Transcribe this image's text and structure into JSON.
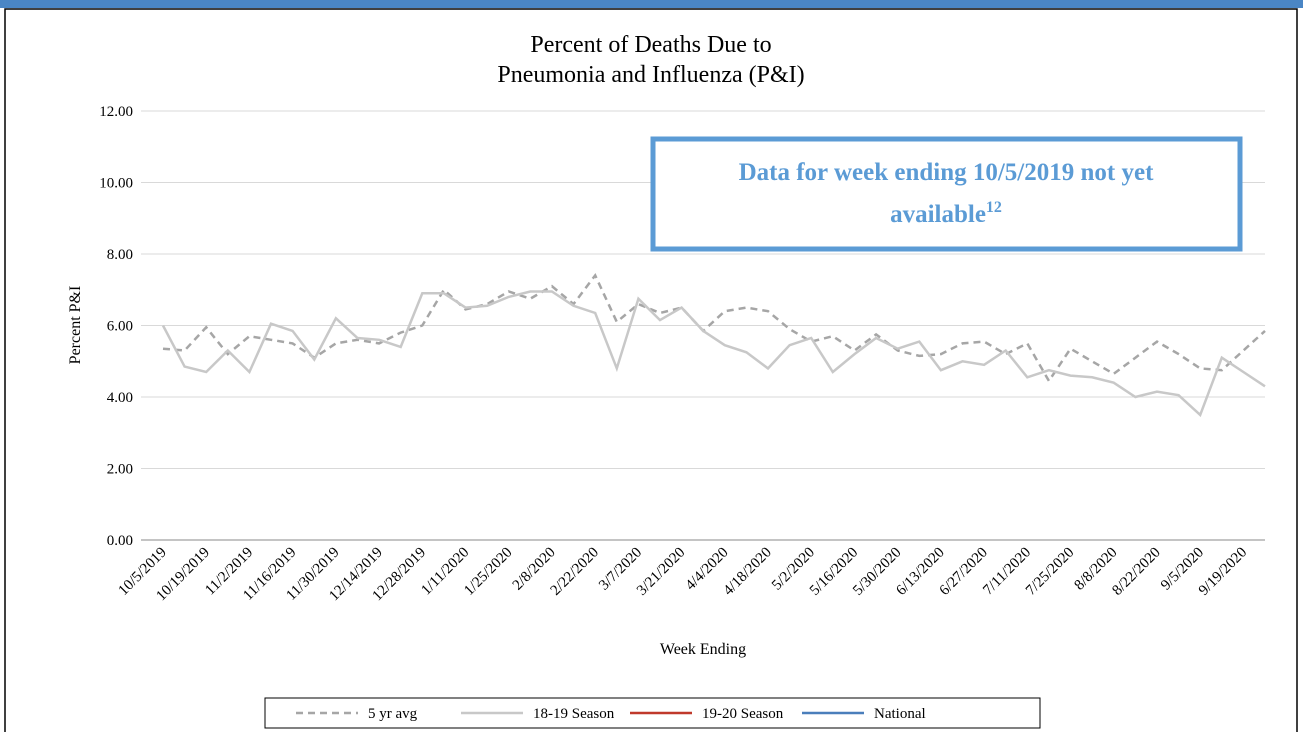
{
  "chart_data": {
    "type": "line",
    "title": [
      "Percent of Deaths Due to",
      "Pneumonia and Influenza (P&I)"
    ],
    "y_label": "Percent P&I",
    "x_label": "Week Ending",
    "annotation": {
      "text": [
        "Data for week ending 10/5/2019 not yet",
        "available"
      ],
      "superscript": "12"
    },
    "categories": [
      "10/5/2019",
      null,
      "10/19/2019",
      null,
      "11/2/2019",
      null,
      "11/16/2019",
      null,
      "11/30/2019",
      null,
      "12/14/2019",
      null,
      "12/28/2019",
      null,
      "1/11/2020",
      null,
      "1/25/2020",
      null,
      "2/8/2020",
      null,
      "2/22/2020",
      null,
      "3/7/2020",
      null,
      "3/21/2020",
      null,
      "4/4/2020",
      null,
      "4/18/2020",
      null,
      "5/2/2020",
      null,
      "5/16/2020",
      null,
      "5/30/2020",
      null,
      "6/13/2020",
      null,
      "6/27/2020",
      null,
      "7/11/2020",
      null,
      "7/25/2020",
      null,
      "8/8/2020",
      null,
      "8/22/2020",
      null,
      "9/5/2020",
      null,
      "9/19/2020",
      null
    ],
    "series": [
      {
        "name": "5 yr avg",
        "color": "#a6a6a6",
        "dash": true,
        "values": [
          5.35,
          5.3,
          5.95,
          5.2,
          5.7,
          5.6,
          5.5,
          5.1,
          5.5,
          5.6,
          5.5,
          5.8,
          6.0,
          7.0,
          6.45,
          6.6,
          6.95,
          6.75,
          7.1,
          6.6,
          7.4,
          6.1,
          6.6,
          6.35,
          6.5,
          5.85,
          6.4,
          6.5,
          6.4,
          5.9,
          5.55,
          5.7,
          5.3,
          5.75,
          5.3,
          5.15,
          5.2,
          5.5,
          5.55,
          5.2,
          5.5,
          4.45,
          5.35,
          5.0,
          4.65,
          5.1,
          5.55,
          5.2,
          4.8,
          4.75,
          5.3,
          5.85
        ]
      },
      {
        "name": "18-19 Season",
        "color": "#c8c8c8",
        "dash": false,
        "values": [
          6.0,
          4.85,
          4.7,
          5.3,
          4.7,
          6.05,
          5.85,
          5.05,
          6.2,
          5.65,
          5.6,
          5.4,
          6.9,
          6.9,
          6.5,
          6.55,
          6.8,
          6.95,
          6.95,
          6.55,
          6.35,
          4.8,
          6.75,
          6.15,
          6.5,
          5.85,
          5.45,
          5.25,
          4.8,
          5.45,
          5.65,
          4.7,
          5.2,
          5.65,
          5.35,
          5.55,
          4.75,
          5.0,
          4.9,
          5.3,
          4.55,
          4.75,
          4.6,
          4.55,
          4.4,
          4.0,
          4.15,
          4.05,
          3.5,
          5.1,
          4.7,
          4.3
        ]
      },
      {
        "name": "19-20 Season",
        "color": "#c0392b",
        "dash": false,
        "values": [
          null,
          null,
          null,
          null,
          null,
          null,
          null,
          null,
          null,
          null,
          null,
          null,
          null,
          null,
          null,
          null,
          null,
          null,
          null,
          null,
          null,
          null,
          null,
          null,
          null,
          null,
          null,
          null,
          null,
          null,
          null,
          null,
          null,
          null,
          null,
          null,
          null,
          null,
          null,
          null,
          null,
          null,
          null,
          null,
          null,
          null,
          null,
          null,
          null,
          null,
          null,
          null
        ]
      },
      {
        "name": "National",
        "color": "#4a7ebb",
        "dash": false,
        "values": [
          null,
          null,
          null,
          null,
          null,
          null,
          null,
          null,
          null,
          null,
          null,
          null,
          null,
          null,
          null,
          null,
          null,
          null,
          null,
          null,
          null,
          null,
          null,
          null,
          null,
          null,
          null,
          null,
          null,
          null,
          null,
          null,
          null,
          null,
          null,
          null,
          null,
          null,
          null,
          null,
          null,
          null,
          null,
          null,
          null,
          null,
          null,
          null,
          null,
          null,
          null,
          null
        ]
      }
    ],
    "ylim": [
      0,
      12
    ],
    "yticks": [
      {
        "value": 0,
        "label": "0.00"
      },
      {
        "value": 2,
        "label": "2.00"
      },
      {
        "value": 4,
        "label": "4.00"
      },
      {
        "value": 6,
        "label": "6.00"
      },
      {
        "value": 8,
        "label": "8.00"
      },
      {
        "value": 10,
        "label": "10.00"
      },
      {
        "value": 12,
        "label": "12.00"
      }
    ],
    "grid": true,
    "legend": "bottom"
  }
}
